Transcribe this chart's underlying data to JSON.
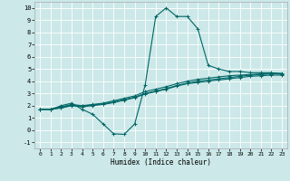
{
  "xlabel": "Humidex (Indice chaleur)",
  "bg_color": "#cce8e8",
  "grid_color": "#ffffff",
  "line_color": "#006666",
  "xlim": [
    -0.5,
    23.5
  ],
  "ylim": [
    -1.5,
    10.5
  ],
  "xticks": [
    0,
    1,
    2,
    3,
    4,
    5,
    6,
    7,
    8,
    9,
    10,
    11,
    12,
    13,
    14,
    15,
    16,
    17,
    18,
    19,
    20,
    21,
    22,
    23
  ],
  "yticks": [
    -1,
    0,
    1,
    2,
    3,
    4,
    5,
    6,
    7,
    8,
    9,
    10
  ],
  "lines": [
    {
      "x": [
        0,
        1,
        2,
        3,
        4,
        5,
        6,
        7,
        8,
        9,
        10,
        11,
        12,
        13,
        14,
        15,
        16,
        17,
        18,
        19,
        20,
        21,
        22,
        23
      ],
      "y": [
        1.7,
        1.7,
        2.0,
        2.2,
        1.7,
        1.3,
        0.5,
        -0.3,
        -0.35,
        0.5,
        3.7,
        9.3,
        10.0,
        9.3,
        9.3,
        8.3,
        5.3,
        5.0,
        4.8,
        4.8,
        4.7,
        4.7,
        4.7,
        4.6
      ]
    },
    {
      "x": [
        0,
        1,
        2,
        3,
        4,
        5,
        6,
        7,
        8,
        9,
        10,
        11,
        12,
        13,
        14,
        15,
        16,
        17,
        18,
        19,
        20,
        21,
        22,
        23
      ],
      "y": [
        1.7,
        1.7,
        1.85,
        2.05,
        1.95,
        2.05,
        2.15,
        2.3,
        2.5,
        2.7,
        3.0,
        3.2,
        3.4,
        3.65,
        3.85,
        4.0,
        4.1,
        4.2,
        4.3,
        4.4,
        4.5,
        4.55,
        4.6,
        4.6
      ]
    },
    {
      "x": [
        0,
        1,
        2,
        3,
        4,
        5,
        6,
        7,
        8,
        9,
        10,
        11,
        12,
        13,
        14,
        15,
        16,
        17,
        18,
        19,
        20,
        21,
        22,
        23
      ],
      "y": [
        1.7,
        1.7,
        1.9,
        2.1,
        2.0,
        2.1,
        2.2,
        2.4,
        2.6,
        2.8,
        3.15,
        3.35,
        3.55,
        3.8,
        4.0,
        4.15,
        4.25,
        4.35,
        4.45,
        4.5,
        4.55,
        4.6,
        4.65,
        4.65
      ]
    },
    {
      "x": [
        0,
        1,
        2,
        3,
        4,
        5,
        6,
        7,
        8,
        9,
        10,
        11,
        12,
        13,
        14,
        15,
        16,
        17,
        18,
        19,
        20,
        21,
        22,
        23
      ],
      "y": [
        1.7,
        1.7,
        1.8,
        2.0,
        1.9,
        2.0,
        2.1,
        2.25,
        2.45,
        2.65,
        2.95,
        3.15,
        3.35,
        3.6,
        3.8,
        3.9,
        4.0,
        4.1,
        4.2,
        4.3,
        4.4,
        4.45,
        4.5,
        4.5
      ]
    }
  ]
}
